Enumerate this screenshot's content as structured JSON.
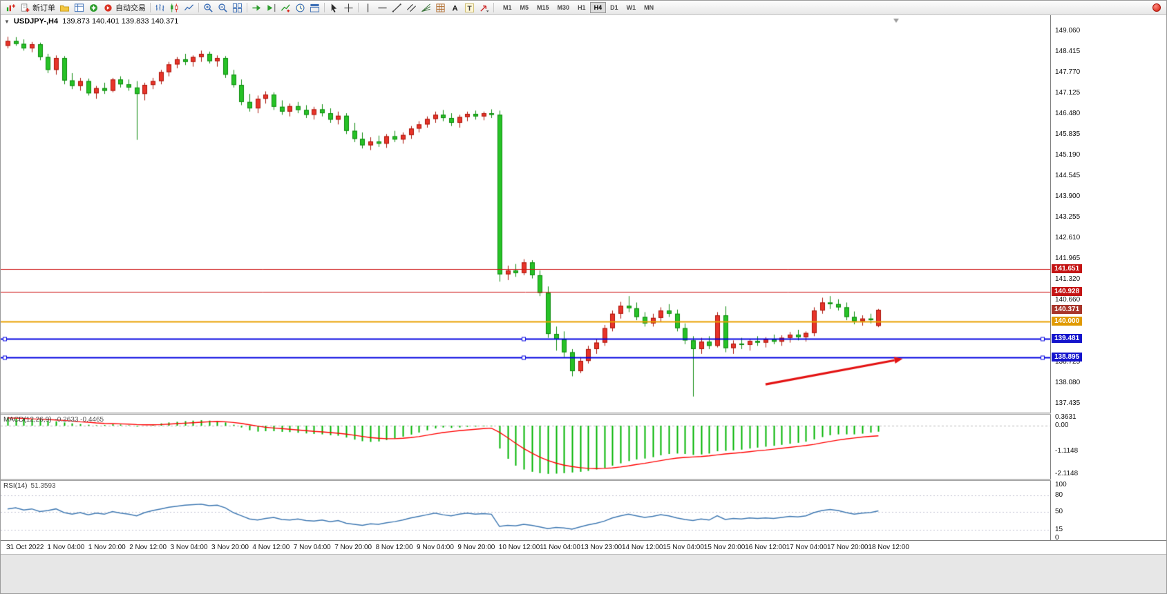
{
  "header": {
    "symbol_period": "USDJPY-,H4",
    "ohlc": "139.873 140.401 139.833 140.371"
  },
  "toolbar": {
    "buttons": [
      {
        "name": "new-chart",
        "type": "chartplus"
      },
      {
        "name": "new-order",
        "type": "neworder",
        "label": "新订单"
      },
      {
        "name": "profiles",
        "type": "profiles"
      },
      {
        "name": "market-watch",
        "type": "marketwatch"
      },
      {
        "name": "navigator",
        "type": "navigator"
      },
      {
        "name": "autotrading",
        "type": "autotrading",
        "label": "自动交易"
      },
      {
        "type": "sep"
      },
      {
        "name": "bar-chart",
        "type": "bars"
      },
      {
        "name": "candle-chart",
        "type": "candles"
      },
      {
        "name": "line-chart",
        "type": "linechart"
      },
      {
        "type": "sep"
      },
      {
        "name": "zoom-in",
        "type": "zoomin"
      },
      {
        "name": "zoom-out",
        "type": "zoomout"
      },
      {
        "name": "tile-windows",
        "type": "tile"
      },
      {
        "type": "sep"
      },
      {
        "name": "auto-scroll",
        "type": "autoscroll"
      },
      {
        "name": "chart-shift",
        "type": "shift"
      },
      {
        "name": "indicators",
        "type": "indicators"
      },
      {
        "name": "periods",
        "type": "clock"
      },
      {
        "name": "templates",
        "type": "templates"
      },
      {
        "type": "sep"
      },
      {
        "name": "cursor",
        "type": "cursor"
      },
      {
        "name": "crosshair",
        "type": "crosshair"
      },
      {
        "type": "sep"
      },
      {
        "name": "vertical-line",
        "type": "vline"
      },
      {
        "name": "horizontal-line",
        "type": "hline"
      },
      {
        "name": "trendline",
        "type": "tline"
      },
      {
        "name": "equidistant-channel",
        "type": "channel"
      },
      {
        "name": "fibonacci",
        "type": "fibo"
      },
      {
        "name": "shapes",
        "type": "gridshapes"
      },
      {
        "name": "text",
        "type": "textA"
      },
      {
        "name": "text-label",
        "type": "textT"
      },
      {
        "name": "arrows-tool",
        "type": "arrows"
      },
      {
        "type": "sep"
      }
    ],
    "timeframes": [
      "M1",
      "M5",
      "M15",
      "M30",
      "H1",
      "H4",
      "D1",
      "W1",
      "MN"
    ],
    "active_timeframe": "H4"
  },
  "chart_data": {
    "type": "candlestick",
    "symbol": "USDJPY-",
    "period": "H4",
    "grid": false,
    "colors": {
      "up": "#e8342a",
      "up_edge": "#a91308",
      "down": "#27c227",
      "down_edge": "#0d8a0d",
      "background": "#ffffff"
    },
    "price_axis_labels": [
      "149.060",
      "148.415",
      "147.770",
      "147.125",
      "146.480",
      "145.835",
      "145.190",
      "144.545",
      "143.900",
      "143.255",
      "142.610",
      "141.965",
      "141.320",
      "140.660",
      "140.015",
      "139.370",
      "138.725",
      "138.080",
      "137.435"
    ],
    "time_axis_labels": [
      "31 Oct 2022",
      "1 Nov 04:00",
      "1 Nov 20:00",
      "2 Nov 12:00",
      "3 Nov 04:00",
      "3 Nov 20:00",
      "4 Nov 12:00",
      "7 Nov 04:00",
      "7 Nov 20:00",
      "8 Nov 12:00",
      "9 Nov 04:00",
      "9 Nov 20:00",
      "10 Nov 12:00",
      "11 Nov 04:00",
      "13 Nov 23:00",
      "14 Nov 12:00",
      "15 Nov 04:00",
      "15 Nov 20:00",
      "16 Nov 12:00",
      "17 Nov 04:00",
      "17 Nov 20:00",
      "18 Nov 12:00"
    ],
    "candles": [
      [
        148.6,
        148.88,
        148.52,
        148.75
      ],
      [
        148.75,
        148.87,
        148.6,
        148.66
      ],
      [
        148.66,
        148.8,
        148.45,
        148.52
      ],
      [
        148.52,
        148.72,
        148.4,
        148.65
      ],
      [
        148.65,
        148.7,
        148.15,
        148.25
      ],
      [
        148.25,
        148.35,
        147.75,
        147.85
      ],
      [
        147.85,
        148.3,
        147.7,
        148.22
      ],
      [
        148.22,
        148.28,
        147.4,
        147.52
      ],
      [
        147.52,
        147.75,
        147.25,
        147.35
      ],
      [
        147.35,
        147.6,
        147.2,
        147.5
      ],
      [
        147.5,
        147.58,
        147.05,
        147.12
      ],
      [
        147.12,
        147.35,
        146.95,
        147.28
      ],
      [
        147.28,
        147.45,
        147.1,
        147.2
      ],
      [
        147.2,
        147.6,
        147.15,
        147.55
      ],
      [
        147.55,
        147.65,
        147.3,
        147.4
      ],
      [
        147.4,
        147.55,
        147.2,
        147.3
      ],
      [
        147.3,
        147.5,
        145.67,
        147.1
      ],
      [
        147.1,
        147.45,
        146.9,
        147.38
      ],
      [
        147.38,
        147.6,
        147.25,
        147.5
      ],
      [
        147.5,
        147.85,
        147.4,
        147.78
      ],
      [
        147.78,
        148.1,
        147.65,
        148.02
      ],
      [
        148.02,
        148.25,
        147.9,
        148.18
      ],
      [
        148.18,
        148.35,
        148.0,
        148.1
      ],
      [
        148.1,
        148.3,
        147.95,
        148.25
      ],
      [
        148.25,
        148.45,
        148.1,
        148.35
      ],
      [
        148.35,
        148.42,
        148.05,
        148.12
      ],
      [
        148.12,
        148.3,
        147.95,
        148.22
      ],
      [
        148.22,
        148.28,
        147.6,
        147.7
      ],
      [
        147.7,
        147.85,
        147.3,
        147.38
      ],
      [
        147.38,
        147.55,
        146.75,
        146.85
      ],
      [
        146.85,
        147.1,
        146.55,
        146.65
      ],
      [
        146.65,
        147.05,
        146.5,
        146.95
      ],
      [
        146.95,
        147.18,
        146.8,
        147.08
      ],
      [
        147.08,
        147.15,
        146.6,
        146.7
      ],
      [
        146.7,
        146.9,
        146.45,
        146.55
      ],
      [
        146.55,
        146.8,
        146.4,
        146.72
      ],
      [
        146.72,
        146.85,
        146.5,
        146.6
      ],
      [
        146.6,
        146.75,
        146.35,
        146.45
      ],
      [
        146.45,
        146.7,
        146.3,
        146.62
      ],
      [
        146.62,
        146.78,
        146.4,
        146.5
      ],
      [
        146.5,
        146.65,
        146.2,
        146.3
      ],
      [
        146.3,
        146.55,
        146.15,
        146.42
      ],
      [
        146.42,
        146.5,
        145.85,
        145.95
      ],
      [
        145.95,
        146.2,
        145.6,
        145.7
      ],
      [
        145.7,
        145.9,
        145.4,
        145.5
      ],
      [
        145.5,
        145.75,
        145.35,
        145.62
      ],
      [
        145.62,
        145.8,
        145.45,
        145.55
      ],
      [
        145.55,
        145.85,
        145.42,
        145.78
      ],
      [
        145.78,
        145.95,
        145.6,
        145.68
      ],
      [
        145.68,
        145.9,
        145.55,
        145.82
      ],
      [
        145.82,
        146.1,
        145.7,
        146.02
      ],
      [
        146.02,
        146.25,
        145.9,
        146.15
      ],
      [
        146.15,
        146.4,
        146.05,
        146.32
      ],
      [
        146.32,
        146.55,
        146.2,
        146.45
      ],
      [
        146.45,
        146.6,
        146.25,
        146.35
      ],
      [
        146.35,
        146.5,
        146.1,
        146.2
      ],
      [
        146.2,
        146.45,
        146.05,
        146.38
      ],
      [
        146.38,
        146.55,
        146.25,
        146.48
      ],
      [
        146.48,
        146.58,
        146.3,
        146.4
      ],
      [
        146.4,
        146.55,
        146.28,
        146.5
      ],
      [
        146.5,
        146.62,
        146.35,
        146.45
      ],
      [
        146.45,
        146.58,
        141.25,
        141.48
      ],
      [
        141.48,
        141.75,
        141.3,
        141.6
      ],
      [
        141.6,
        141.8,
        141.4,
        141.52
      ],
      [
        141.52,
        141.95,
        141.45,
        141.85
      ],
      [
        141.85,
        141.92,
        141.35,
        141.45
      ],
      [
        141.45,
        141.6,
        140.8,
        140.9
      ],
      [
        140.9,
        141.1,
        139.5,
        139.62
      ],
      [
        139.62,
        139.85,
        139.1,
        139.45
      ],
      [
        139.45,
        139.7,
        138.9,
        139.05
      ],
      [
        139.05,
        139.15,
        138.3,
        138.46
      ],
      [
        138.46,
        138.9,
        138.4,
        138.78
      ],
      [
        138.78,
        139.25,
        138.7,
        139.15
      ],
      [
        139.15,
        139.45,
        139.0,
        139.35
      ],
      [
        139.35,
        139.9,
        139.25,
        139.8
      ],
      [
        139.8,
        140.35,
        139.7,
        140.25
      ],
      [
        140.25,
        140.62,
        140.1,
        140.5
      ],
      [
        140.5,
        140.8,
        140.3,
        140.42
      ],
      [
        140.42,
        140.6,
        140.05,
        140.15
      ],
      [
        140.15,
        140.3,
        139.85,
        139.95
      ],
      [
        139.95,
        140.25,
        139.85,
        140.12
      ],
      [
        140.12,
        140.45,
        140.0,
        140.35
      ],
      [
        140.35,
        140.55,
        140.15,
        140.25
      ],
      [
        140.25,
        140.38,
        139.7,
        139.8
      ],
      [
        139.8,
        139.95,
        139.3,
        139.42
      ],
      [
        139.42,
        139.55,
        137.67,
        139.15
      ],
      [
        139.15,
        139.5,
        139.0,
        139.38
      ],
      [
        139.38,
        139.55,
        139.15,
        139.25
      ],
      [
        139.25,
        140.3,
        139.2,
        140.2
      ],
      [
        140.2,
        140.48,
        139.05,
        139.18
      ],
      [
        139.18,
        139.42,
        139.0,
        139.32
      ],
      [
        139.32,
        139.5,
        139.15,
        139.28
      ],
      [
        139.28,
        139.45,
        139.1,
        139.4
      ],
      [
        139.4,
        139.55,
        139.25,
        139.35
      ],
      [
        139.35,
        139.52,
        139.2,
        139.45
      ],
      [
        139.45,
        139.6,
        139.3,
        139.38
      ],
      [
        139.38,
        139.58,
        139.25,
        139.5
      ],
      [
        139.5,
        139.68,
        139.35,
        139.6
      ],
      [
        139.6,
        139.75,
        139.42,
        139.52
      ],
      [
        139.52,
        139.7,
        139.38,
        139.65
      ],
      [
        139.65,
        140.45,
        139.55,
        140.35
      ],
      [
        140.35,
        140.75,
        140.25,
        140.6
      ],
      [
        140.6,
        140.8,
        140.4,
        140.55
      ],
      [
        140.55,
        140.7,
        140.35,
        140.45
      ],
      [
        140.45,
        140.6,
        140.05,
        140.15
      ],
      [
        140.15,
        140.32,
        139.92,
        140.02
      ],
      [
        140.02,
        140.2,
        139.88,
        140.1
      ],
      [
        140.1,
        140.25,
        139.95,
        140.05
      ],
      [
        139.873,
        140.401,
        139.833,
        140.371
      ]
    ],
    "hlines": [
      {
        "price": 141.651,
        "color": "#cc1111",
        "width": 1
      },
      {
        "price": 140.928,
        "color": "#cc1111",
        "width": 1
      },
      {
        "price": 140.0,
        "color": "#e8a000",
        "width": 2
      },
      {
        "price": 139.481,
        "color": "#0000e0",
        "width": 2,
        "handles": true
      },
      {
        "price": 138.895,
        "color": "#0000e0",
        "width": 2,
        "handles": true
      }
    ],
    "badges": [
      {
        "text": "141.651",
        "price": 141.651,
        "color": "#c41414",
        "name": "resistance-badge-1"
      },
      {
        "text": "140.928",
        "price": 140.928,
        "color": "#c41414",
        "name": "resistance-badge-2"
      },
      {
        "text": "140.000",
        "price": 140.0,
        "color": "#e09a00",
        "name": "orange-level-badge"
      },
      {
        "text": "140.371",
        "price": 140.371,
        "color": "#a8352a",
        "name": "current-price-badge"
      },
      {
        "text": "139.481",
        "price": 139.481,
        "color": "#1414cc",
        "name": "support-badge-1"
      },
      {
        "text": "138.895",
        "price": 138.895,
        "color": "#1414cc",
        "name": "support-badge-2"
      }
    ],
    "trend_arrow": {
      "from_index": 94,
      "from_price": 138.05,
      "to_index": 110,
      "to_price": 138.8,
      "color": "#e31212"
    },
    "macd": {
      "label": "MACD(12,26,9)",
      "values_text": "-0.2633 -0.4465",
      "hist_color": "#00b400",
      "signal_color": "#ff0000",
      "axis_labels": [
        "0.3631",
        "0.00",
        "-1.1148",
        "-2.1148"
      ],
      "histogram": [
        0.36,
        0.33,
        0.3,
        0.28,
        0.26,
        0.22,
        0.19,
        0.14,
        0.1,
        0.07,
        0.04,
        0.02,
        0.03,
        0.06,
        0.05,
        0.02,
        -0.04,
        0.0,
        0.05,
        0.1,
        0.14,
        0.17,
        0.2,
        0.22,
        0.24,
        0.22,
        0.2,
        0.14,
        0.04,
        -0.08,
        -0.2,
        -0.26,
        -0.24,
        -0.24,
        -0.27,
        -0.28,
        -0.31,
        -0.34,
        -0.36,
        -0.38,
        -0.42,
        -0.44,
        -0.52,
        -0.61,
        -0.68,
        -0.71,
        -0.69,
        -0.63,
        -0.56,
        -0.48,
        -0.39,
        -0.3,
        -0.2,
        -0.12,
        -0.08,
        -0.1,
        -0.08,
        -0.05,
        -0.04,
        -0.03,
        -0.03,
        -1.0,
        -1.45,
        -1.75,
        -1.92,
        -2.02,
        -2.08,
        -2.11,
        -2.1,
        -2.08,
        -2.05,
        -2.02,
        -1.98,
        -1.92,
        -1.85,
        -1.75,
        -1.65,
        -1.55,
        -1.48,
        -1.44,
        -1.38,
        -1.3,
        -1.24,
        -1.22,
        -1.24,
        -1.28,
        -1.26,
        -1.22,
        -1.12,
        -1.1,
        -1.08,
        -1.05,
        -1.0,
        -0.96,
        -0.92,
        -0.88,
        -0.84,
        -0.79,
        -0.75,
        -0.7,
        -0.6,
        -0.5,
        -0.42,
        -0.38,
        -0.38,
        -0.38,
        -0.35,
        -0.3,
        -0.2633
      ],
      "signal": [
        0.34,
        0.33,
        0.32,
        0.3,
        0.29,
        0.27,
        0.25,
        0.23,
        0.2,
        0.17,
        0.15,
        0.12,
        0.1,
        0.09,
        0.08,
        0.07,
        0.05,
        0.04,
        0.04,
        0.05,
        0.07,
        0.09,
        0.11,
        0.13,
        0.15,
        0.17,
        0.18,
        0.17,
        0.14,
        0.1,
        0.04,
        -0.02,
        -0.07,
        -0.1,
        -0.13,
        -0.16,
        -0.19,
        -0.22,
        -0.25,
        -0.27,
        -0.3,
        -0.33,
        -0.37,
        -0.42,
        -0.47,
        -0.52,
        -0.55,
        -0.57,
        -0.57,
        -0.55,
        -0.52,
        -0.48,
        -0.42,
        -0.36,
        -0.3,
        -0.26,
        -0.22,
        -0.19,
        -0.16,
        -0.13,
        -0.11,
        -0.29,
        -0.52,
        -0.77,
        -1.0,
        -1.2,
        -1.38,
        -1.52,
        -1.64,
        -1.73,
        -1.79,
        -1.84,
        -1.87,
        -1.88,
        -1.87,
        -1.85,
        -1.81,
        -1.76,
        -1.7,
        -1.65,
        -1.59,
        -1.53,
        -1.47,
        -1.42,
        -1.39,
        -1.37,
        -1.35,
        -1.32,
        -1.28,
        -1.24,
        -1.21,
        -1.18,
        -1.14,
        -1.1,
        -1.07,
        -1.03,
        -0.99,
        -0.95,
        -0.91,
        -0.87,
        -0.82,
        -0.75,
        -0.69,
        -0.63,
        -0.58,
        -0.54,
        -0.5,
        -0.47,
        -0.4465
      ]
    },
    "rsi": {
      "label": "RSI(14)",
      "value_text": "51.3593",
      "color": "#3e78b2",
      "axis_labels": [
        "100",
        "80",
        "50",
        "15",
        "0"
      ],
      "levels": [
        80,
        50,
        15
      ],
      "values": [
        55,
        57,
        53,
        55,
        50,
        52,
        55,
        48,
        45,
        48,
        44,
        47,
        45,
        50,
        47,
        45,
        42,
        48,
        52,
        55,
        58,
        60,
        62,
        63,
        64,
        61,
        62,
        57,
        48,
        42,
        36,
        34,
        37,
        39,
        35,
        34,
        36,
        33,
        32,
        34,
        31,
        33,
        28,
        26,
        24,
        27,
        26,
        29,
        31,
        34,
        38,
        41,
        44,
        47,
        44,
        42,
        45,
        47,
        45,
        46,
        45,
        22,
        24,
        23,
        26,
        24,
        21,
        18,
        20,
        19,
        17,
        21,
        25,
        28,
        32,
        38,
        42,
        45,
        42,
        39,
        41,
        44,
        42,
        38,
        35,
        33,
        36,
        34,
        42,
        35,
        37,
        36,
        38,
        37,
        38,
        37,
        39,
        41,
        40,
        42,
        48,
        52,
        54,
        52,
        48,
        45,
        47,
        48,
        51.36
      ]
    }
  }
}
